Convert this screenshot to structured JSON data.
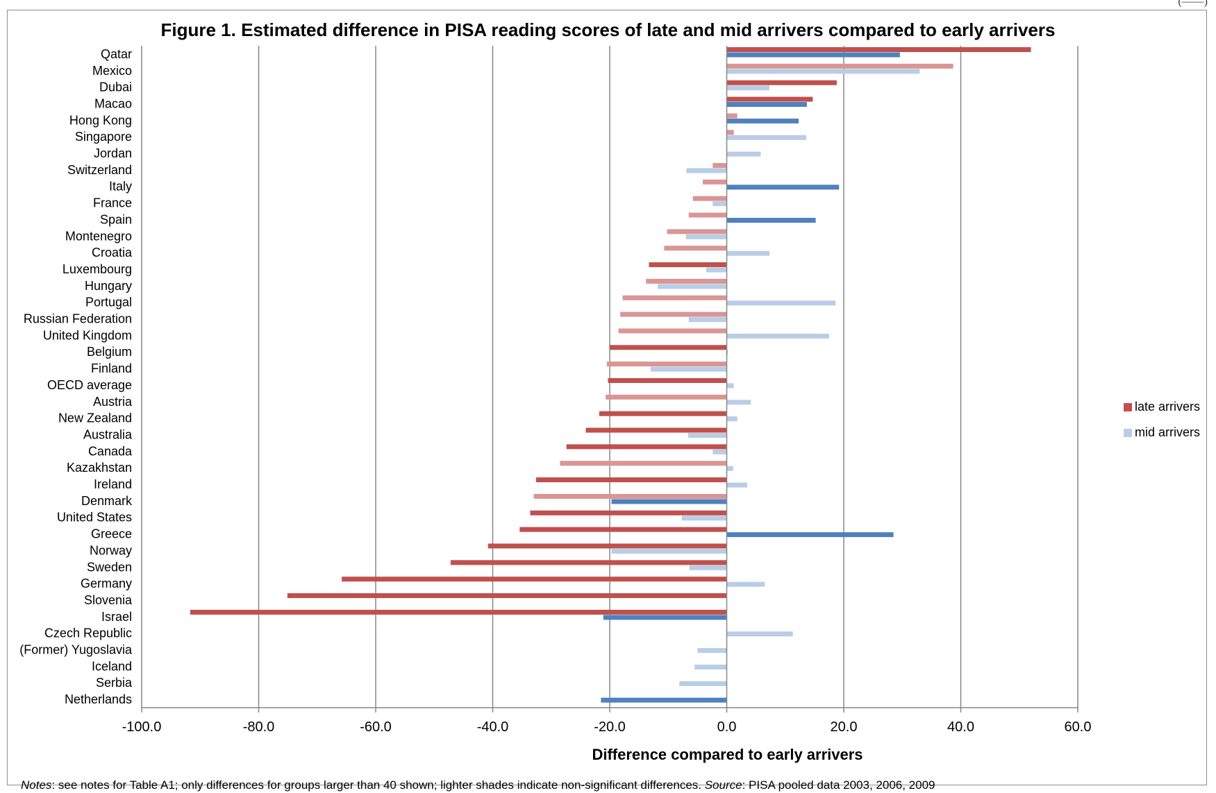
{
  "header_fragment": "(——)",
  "notes": {
    "notes_label": "Notes",
    "notes_text": ": see notes for Table A1; only differences for groups larger than 40 shown; lighter shades indicate non-significant differences. ",
    "source_label": "Source",
    "source_text": ": PISA pooled data 2003, 2006, 2009"
  },
  "colors": {
    "late_significant": "#c0504d",
    "late_nonsignificant": "#d99694",
    "mid_significant": "#4f81bd",
    "mid_nonsignificant": "#b9cde5",
    "gridline": "#868686"
  },
  "chart_data": {
    "type": "bar",
    "orientation": "horizontal",
    "title": "Figure 1. Estimated difference in PISA reading scores of late and mid arrivers compared to early arrivers",
    "xlabel": "Difference  compared to early arrivers",
    "ylabel": "",
    "xlim": [
      -100,
      60
    ],
    "xticks": [
      -100,
      -80,
      -60,
      -40,
      -20,
      0,
      20,
      40,
      60
    ],
    "xtick_labels": [
      "-100.0",
      "-80.0",
      "-60.0",
      "-40.0",
      "-20.0",
      "0.0",
      "20.0",
      "40.0",
      "60.0"
    ],
    "grid": true,
    "legend_position": "right",
    "categories": [
      "Qatar",
      "Mexico",
      "Dubai",
      "Macao",
      "Hong Kong",
      "Singapore",
      "Jordan",
      "Switzerland",
      "Italy",
      "France",
      "Spain",
      "Montenegro",
      "Croatia",
      "Luxembourg",
      "Hungary",
      "Portugal",
      "Russian Federation",
      "United Kingdom",
      "Belgium",
      "Finland",
      "OECD average",
      "Austria",
      "New Zealand",
      "Australia",
      "Canada",
      "Kazakhstan",
      "Ireland",
      "Denmark",
      "United States",
      "Greece",
      "Norway",
      "Sweden",
      "Germany",
      "Slovenia",
      "Israel",
      "Czech Republic",
      "(Former) Yugoslavia",
      "Iceland",
      "Serbia",
      "Netherlands"
    ],
    "series": [
      {
        "name": "late arrivers",
        "values": [
          52,
          38.7,
          18.8,
          14.7,
          1.8,
          1.2,
          null,
          -2.4,
          -4.1,
          -5.8,
          -6.5,
          -10.2,
          -10.7,
          -13.3,
          -13.8,
          -17.8,
          -18.2,
          -18.5,
          -20,
          -20.5,
          -20.3,
          -20.7,
          -21.8,
          -24.1,
          -27.4,
          -28.5,
          -32.6,
          -33,
          -33.6,
          -35.4,
          -40.8,
          -47.2,
          -65.8,
          -75.1,
          -91.7,
          null,
          null,
          null,
          null,
          null
        ],
        "significant": [
          true,
          false,
          true,
          true,
          false,
          false,
          null,
          false,
          false,
          false,
          false,
          false,
          false,
          true,
          false,
          false,
          false,
          false,
          true,
          false,
          true,
          false,
          true,
          true,
          true,
          false,
          true,
          false,
          true,
          true,
          true,
          true,
          true,
          true,
          true,
          null,
          null,
          null,
          null,
          null
        ]
      },
      {
        "name": "mid arrivers",
        "values": [
          29.6,
          33,
          7.3,
          13.7,
          12.3,
          13.6,
          5.8,
          -6.9,
          19.2,
          -2.4,
          15.2,
          -7,
          7.3,
          -3.5,
          -11.8,
          18.6,
          -6.5,
          17.5,
          0.2,
          -13,
          1.2,
          4.1,
          1.8,
          -6.6,
          -2.4,
          1.1,
          3.5,
          -19.7,
          -7.7,
          28.5,
          -19.7,
          -6.4,
          6.5,
          null,
          -21.1,
          11.3,
          -5,
          -5.5,
          -8.1,
          -21.5
        ],
        "significant": [
          true,
          false,
          false,
          true,
          true,
          false,
          false,
          false,
          true,
          false,
          true,
          false,
          false,
          false,
          false,
          false,
          false,
          false,
          false,
          false,
          false,
          false,
          false,
          false,
          false,
          false,
          false,
          true,
          false,
          true,
          false,
          false,
          false,
          null,
          true,
          false,
          false,
          false,
          false,
          true
        ]
      }
    ]
  }
}
